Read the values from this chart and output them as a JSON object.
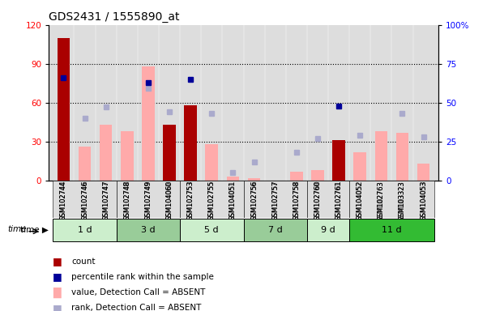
{
  "title": "GDS2431 / 1555890_at",
  "samples": [
    "GSM102744",
    "GSM102746",
    "GSM102747",
    "GSM102748",
    "GSM102749",
    "GSM104060",
    "GSM102753",
    "GSM102755",
    "GSM104051",
    "GSM102756",
    "GSM102757",
    "GSM102758",
    "GSM102760",
    "GSM102761",
    "GSM104052",
    "GSM102763",
    "GSM103323",
    "GSM104053"
  ],
  "time_groups": [
    {
      "label": "1 d",
      "indices": [
        0,
        1,
        2
      ],
      "color": "#cceecc"
    },
    {
      "label": "3 d",
      "indices": [
        3,
        4,
        5
      ],
      "color": "#88cc88"
    },
    {
      "label": "5 d",
      "indices": [
        6,
        7,
        8
      ],
      "color": "#cceecc"
    },
    {
      "label": "7 d",
      "indices": [
        9,
        10,
        11
      ],
      "color": "#88cc88"
    },
    {
      "label": "9 d",
      "indices": [
        12,
        13
      ],
      "color": "#cceecc"
    },
    {
      "label": "11 d",
      "indices": [
        14,
        15,
        16,
        17
      ],
      "color": "#33bb33"
    }
  ],
  "count_bars": [
    110,
    0,
    0,
    0,
    0,
    43,
    58,
    0,
    0,
    0,
    0,
    0,
    0,
    31,
    0,
    0,
    0,
    0
  ],
  "value_absent_bars": [
    0,
    26,
    43,
    38,
    88,
    0,
    0,
    28,
    3,
    2,
    0,
    7,
    8,
    0,
    22,
    38,
    37,
    13
  ],
  "percentile_rank_dots": [
    66,
    0,
    0,
    0,
    63,
    0,
    65,
    0,
    0,
    0,
    0,
    0,
    0,
    48,
    0,
    0,
    0,
    0
  ],
  "rank_absent_dots": [
    0,
    40,
    47,
    0,
    59,
    44,
    0,
    43,
    5,
    12,
    0,
    18,
    27,
    0,
    29,
    0,
    43,
    28
  ],
  "ylim_left": [
    0,
    120
  ],
  "ylim_right": [
    0,
    100
  ],
  "yticks_left": [
    0,
    30,
    60,
    90,
    120
  ],
  "yticks_right": [
    0,
    25,
    50,
    75,
    100
  ],
  "ytick_labels_left": [
    "0",
    "30",
    "60",
    "90",
    "120"
  ],
  "ytick_labels_right": [
    "0",
    "25",
    "50",
    "75",
    "100%"
  ],
  "bar_color_count": "#aa0000",
  "bar_color_absent": "#ffaaaa",
  "dot_color_percentile": "#000099",
  "dot_color_rank_absent": "#aaaacc",
  "bg_color": "#dddddd"
}
